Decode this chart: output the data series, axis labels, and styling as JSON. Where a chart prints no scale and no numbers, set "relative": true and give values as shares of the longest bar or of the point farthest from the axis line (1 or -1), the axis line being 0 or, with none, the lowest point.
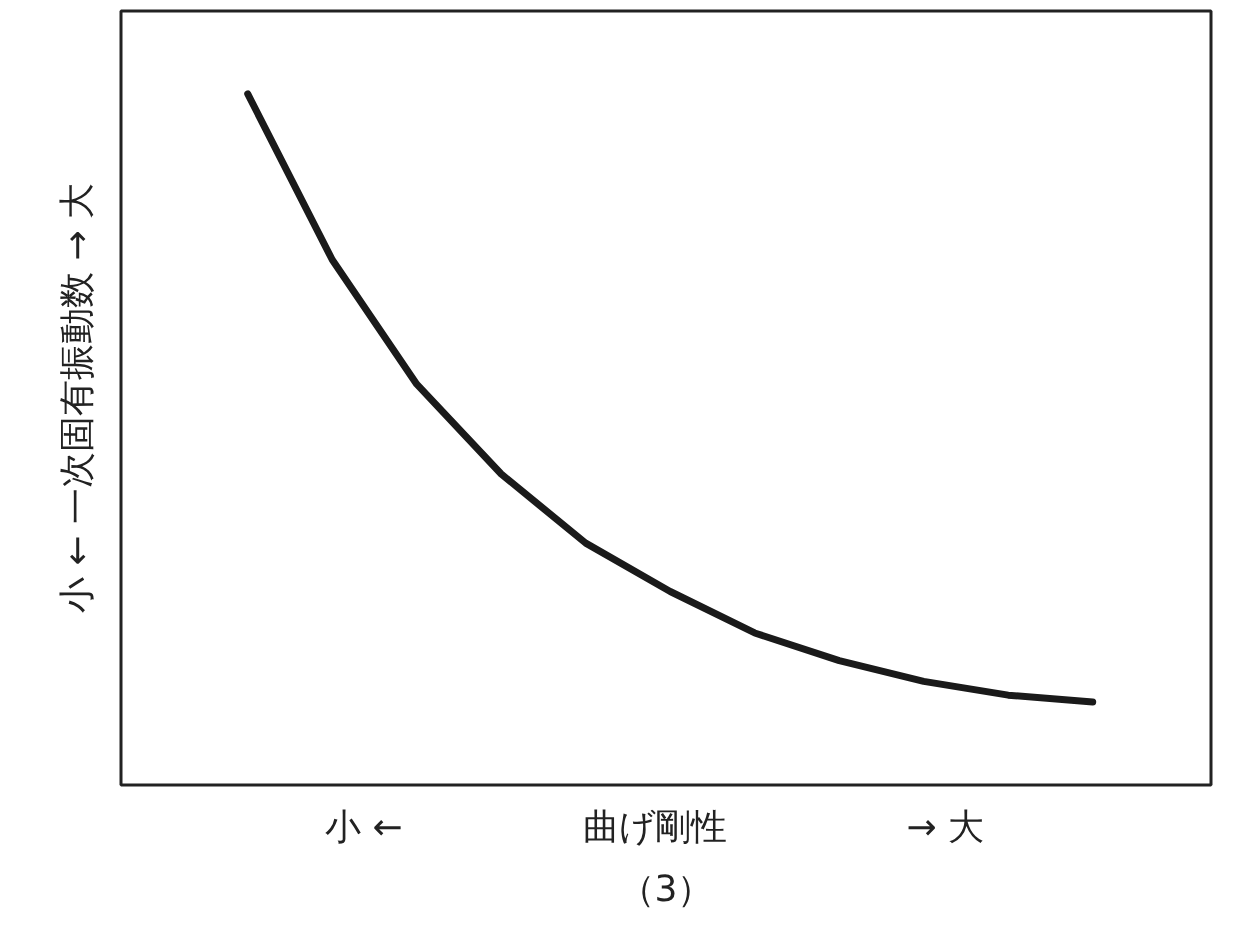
{
  "chart_data": {
    "type": "line",
    "relative": true,
    "xlabel": "小  ←　　　　　曲げ剛性　　　　　→  大",
    "ylabel": "小 ← 一次固有振動数 → 大",
    "categories": [
      null,
      null,
      null,
      null,
      null,
      null,
      null,
      null,
      null,
      null,
      null
    ],
    "series": [
      {
        "color": "#1a1a1a",
        "values": [
          1,
          0.76,
          0.58,
          0.45,
          0.35,
          0.28,
          0.22,
          0.18,
          0.15,
          0.13,
          0.12
        ]
      }
    ],
    "grid": false,
    "marker": "none",
    "line_style": "solid",
    "annotations": [
      "（3）"
    ]
  }
}
